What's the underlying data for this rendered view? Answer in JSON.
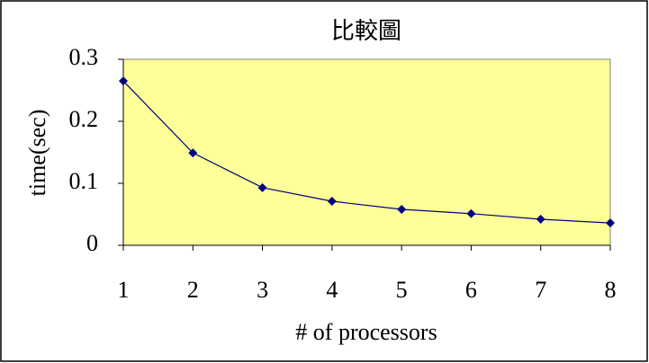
{
  "chart_data": {
    "type": "line",
    "title": "比較圖",
    "x_label": "# of processors",
    "y_label": "time(sec)",
    "x": [
      1,
      2,
      3,
      4,
      5,
      6,
      7,
      8
    ],
    "series": [
      {
        "name": "time",
        "color": "#000080",
        "values": [
          0.265,
          0.149,
          0.093,
          0.071,
          0.058,
          0.051,
          0.042,
          0.036
        ]
      }
    ],
    "xlim": [
      1,
      8
    ],
    "xticks": [
      1,
      2,
      3,
      4,
      5,
      6,
      7,
      8
    ],
    "ylim": [
      0,
      0.3
    ],
    "yticks": [
      0,
      0.1,
      0.2,
      0.3
    ],
    "plot_background": "#ffff99",
    "grid": false
  }
}
